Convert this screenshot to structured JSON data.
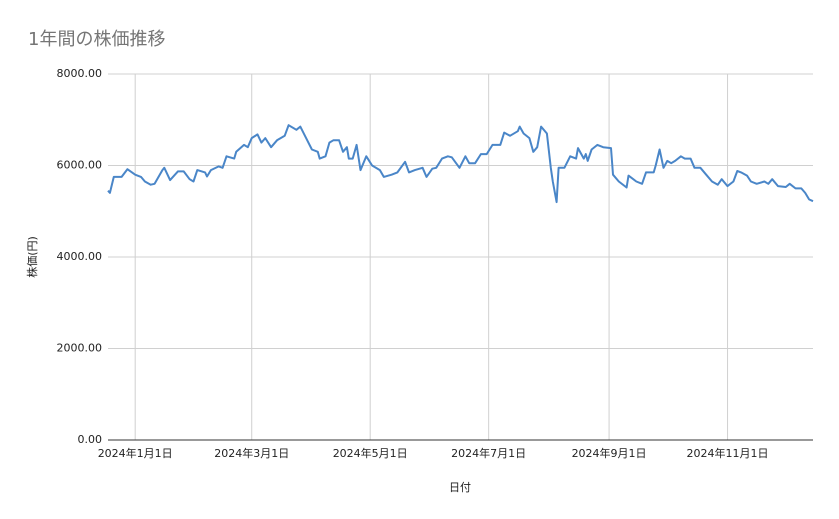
{
  "chart_data": {
    "type": "line",
    "title": "1年間の株価推移",
    "x_label": "日付",
    "y_label": "株価(円)",
    "x": [
      "2023-12-18",
      "2023-12-19",
      "2023-12-21",
      "2023-12-25",
      "2023-12-28",
      "2024-01-01",
      "2024-01-04",
      "2024-01-06",
      "2024-01-09",
      "2024-01-11",
      "2024-01-15",
      "2024-01-16",
      "2024-01-19",
      "2024-01-23",
      "2024-01-26",
      "2024-01-29",
      "2024-01-31",
      "2024-02-02",
      "2024-02-06",
      "2024-02-07",
      "2024-02-09",
      "2024-02-13",
      "2024-02-15",
      "2024-02-17",
      "2024-02-21",
      "2024-02-22",
      "2024-02-26",
      "2024-02-28",
      "2024-03-01",
      "2024-03-04",
      "2024-03-06",
      "2024-03-08",
      "2024-03-11",
      "2024-03-14",
      "2024-03-18",
      "2024-03-20",
      "2024-03-24",
      "2024-03-26",
      "2024-03-29",
      "2024-04-01",
      "2024-04-04",
      "2024-04-05",
      "2024-04-08",
      "2024-04-10",
      "2024-04-12",
      "2024-04-15",
      "2024-04-17",
      "2024-04-19",
      "2024-04-20",
      "2024-04-22",
      "2024-04-24",
      "2024-04-26",
      "2024-04-29",
      "2024-05-02",
      "2024-05-06",
      "2024-05-08",
      "2024-05-12",
      "2024-05-15",
      "2024-05-19",
      "2024-05-21",
      "2024-05-24",
      "2024-05-28",
      "2024-05-30",
      "2024-06-02",
      "2024-06-04",
      "2024-06-07",
      "2024-06-10",
      "2024-06-12",
      "2024-06-16",
      "2024-06-19",
      "2024-06-21",
      "2024-06-24",
      "2024-06-27",
      "2024-06-30",
      "2024-07-03",
      "2024-07-07",
      "2024-07-09",
      "2024-07-12",
      "2024-07-16",
      "2024-07-17",
      "2024-07-19",
      "2024-07-22",
      "2024-07-24",
      "2024-07-26",
      "2024-07-28",
      "2024-07-31",
      "2024-08-02",
      "2024-08-03",
      "2024-08-05",
      "2024-08-06",
      "2024-08-09",
      "2024-08-12",
      "2024-08-15",
      "2024-08-16",
      "2024-08-19",
      "2024-08-20",
      "2024-08-21",
      "2024-08-23",
      "2024-08-26",
      "2024-08-29",
      "2024-09-02",
      "2024-09-03",
      "2024-09-06",
      "2024-09-10",
      "2024-09-11",
      "2024-09-15",
      "2024-09-18",
      "2024-09-20",
      "2024-09-24",
      "2024-09-25",
      "2024-09-27",
      "2024-09-29",
      "2024-10-01",
      "2024-10-03",
      "2024-10-05",
      "2024-10-08",
      "2024-10-10",
      "2024-10-13",
      "2024-10-15",
      "2024-10-18",
      "2024-10-21",
      "2024-10-24",
      "2024-10-27",
      "2024-10-29",
      "2024-11-01",
      "2024-11-04",
      "2024-11-06",
      "2024-11-08",
      "2024-11-11",
      "2024-11-13",
      "2024-11-16",
      "2024-11-20",
      "2024-11-22",
      "2024-11-24",
      "2024-11-27",
      "2024-12-01",
      "2024-12-03",
      "2024-12-06",
      "2024-12-09",
      "2024-12-11",
      "2024-12-13",
      "2024-12-15"
    ],
    "series": [
      {
        "name": "株価(円)",
        "color": "#4a86c8",
        "values": [
          5450,
          5400,
          5750,
          5750,
          5920,
          5800,
          5750,
          5650,
          5580,
          5600,
          5900,
          5950,
          5680,
          5870,
          5870,
          5700,
          5650,
          5900,
          5850,
          5760,
          5900,
          5980,
          5950,
          6200,
          6150,
          6300,
          6450,
          6400,
          6600,
          6680,
          6500,
          6600,
          6400,
          6550,
          6650,
          6880,
          6780,
          6850,
          6600,
          6350,
          6300,
          6150,
          6200,
          6500,
          6550,
          6550,
          6300,
          6400,
          6150,
          6150,
          6450,
          5900,
          6200,
          6000,
          5900,
          5750,
          5800,
          5850,
          6080,
          5850,
          5900,
          5950,
          5750,
          5930,
          5950,
          6150,
          6200,
          6180,
          5950,
          6200,
          6050,
          6050,
          6250,
          6250,
          6450,
          6450,
          6720,
          6650,
          6750,
          6850,
          6700,
          6600,
          6300,
          6400,
          6850,
          6700,
          5950,
          5650,
          5200,
          5950,
          5950,
          6200,
          6150,
          6380,
          6150,
          6250,
          6100,
          6350,
          6450,
          6400,
          6380,
          5800,
          5650,
          5520,
          5780,
          5650,
          5600,
          5850,
          5850,
          6000,
          6350,
          5950,
          6100,
          6050,
          6100,
          6200,
          6150,
          6150,
          5950,
          5950,
          5800,
          5650,
          5580,
          5700,
          5550,
          5650,
          5880,
          5850,
          5780,
          5650,
          5600,
          5650,
          5600,
          5700,
          5550,
          5530,
          5600,
          5500,
          5500,
          5400,
          5260,
          5220
        ]
      }
    ],
    "xlim": [
      "2023-12-18",
      "2024-12-15"
    ],
    "xticks": [
      {
        "value": "2024-01-01",
        "label": "2024年1月1日"
      },
      {
        "value": "2024-03-01",
        "label": "2024年3月1日"
      },
      {
        "value": "2024-05-01",
        "label": "2024年5月1日"
      },
      {
        "value": "2024-07-01",
        "label": "2024年7月1日"
      },
      {
        "value": "2024-09-01",
        "label": "2024年9月1日"
      },
      {
        "value": "2024-11-01",
        "label": "2024年11月1日"
      }
    ],
    "ylim": [
      0,
      8000
    ],
    "yticks": [
      {
        "value": 0,
        "label": "0.00"
      },
      {
        "value": 2000,
        "label": "2000.00"
      },
      {
        "value": 4000,
        "label": "4000.00"
      },
      {
        "value": 6000,
        "label": "6000.00"
      },
      {
        "value": 8000,
        "label": "8000.00"
      }
    ],
    "grid": true
  }
}
